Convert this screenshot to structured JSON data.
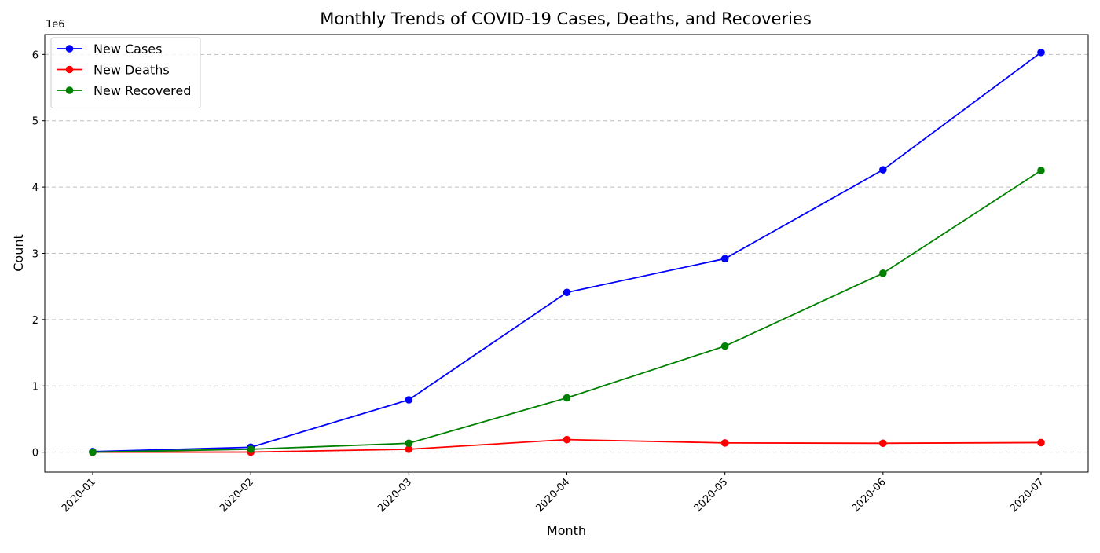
{
  "chart_data": {
    "type": "line",
    "title": "Monthly Trends of COVID-19 Cases, Deaths, and Recoveries",
    "xlabel": "Month",
    "ylabel": "Count",
    "y_offset_label": "1e6",
    "categories": [
      "2020-01",
      "2020-02",
      "2020-03",
      "2020-04",
      "2020-05",
      "2020-06",
      "2020-07"
    ],
    "y_ticks": [
      0,
      1,
      2,
      3,
      4,
      5,
      6
    ],
    "ylim": [
      -0.3,
      6.3
    ],
    "y_unit_scale": 1000000,
    "grid": "y-dashed",
    "legend_position": "top-left",
    "series": [
      {
        "name": "New Cases",
        "color": "#0000ff",
        "values": [
          10000,
          75000,
          790000,
          2410000,
          2920000,
          4260000,
          6030000
        ]
      },
      {
        "name": "New Deaths",
        "color": "#ff0000",
        "values": [
          200,
          2000,
          45000,
          190000,
          140000,
          135000,
          145000
        ]
      },
      {
        "name": "New Recovered",
        "color": "#008000",
        "values": [
          1000,
          45000,
          135000,
          820000,
          1600000,
          2700000,
          4250000
        ]
      }
    ]
  }
}
